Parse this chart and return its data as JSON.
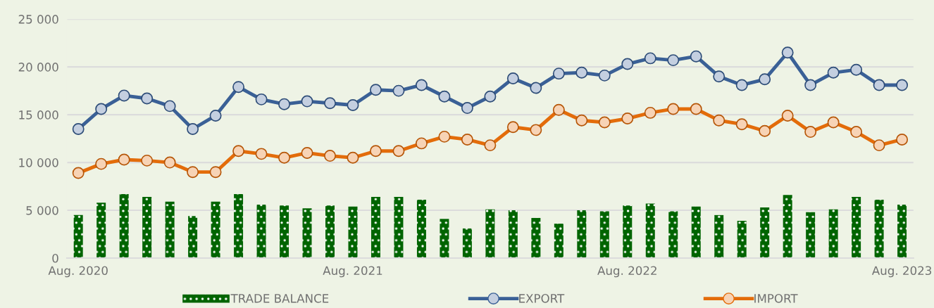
{
  "chart_data": {
    "type": "line",
    "categories": [
      "Aug. 2020",
      null,
      null,
      null,
      null,
      null,
      null,
      null,
      null,
      null,
      null,
      null,
      "Aug. 2021",
      null,
      null,
      null,
      null,
      null,
      null,
      null,
      null,
      null,
      null,
      null,
      "Aug. 2022",
      null,
      null,
      null,
      null,
      null,
      null,
      null,
      null,
      null,
      null,
      null,
      "Aug. 2023"
    ],
    "series": [
      {
        "name": "TRADE BALANCE",
        "type": "bar",
        "color": "#006400",
        "values": [
          4500,
          5800,
          6700,
          6400,
          5900,
          4400,
          5900,
          6700,
          5600,
          5500,
          5200,
          5500,
          5400,
          6400,
          6400,
          6100,
          4100,
          3100,
          5100,
          5000,
          4200,
          3600,
          5000,
          4900,
          5500,
          5700,
          4900,
          5400,
          4500,
          3900,
          5300,
          6600,
          4800,
          5100,
          6400,
          6100,
          5600
        ]
      },
      {
        "name": "EXPORT",
        "color": "#3a6096",
        "values": [
          13500,
          15600,
          17000,
          16700,
          15900,
          13500,
          14900,
          17900,
          16600,
          16100,
          16400,
          16200,
          16000,
          17600,
          17500,
          18100,
          16900,
          15700,
          16900,
          18800,
          17800,
          19300,
          19400,
          19100,
          20300,
          20900,
          20700,
          21100,
          19000,
          18100,
          18700,
          21500,
          18100,
          19400,
          19700,
          18100,
          18100
        ]
      },
      {
        "name": "IMPORT",
        "color": "#e36c0a",
        "values": [
          8900,
          9850,
          10300,
          10200,
          10000,
          9000,
          9000,
          11200,
          10900,
          10500,
          11000,
          10700,
          10500,
          11200,
          11200,
          12000,
          12700,
          12400,
          11800,
          13700,
          13400,
          15500,
          14400,
          14200,
          14600,
          15200,
          15600,
          15600,
          14400,
          14000,
          13300,
          14900,
          13200,
          14200,
          13200,
          11800,
          12400
        ]
      }
    ],
    "ylim": [
      0,
      25000
    ],
    "yticks": [
      0,
      {
        "value": 5000,
        "label": "5 000"
      },
      {
        "value": 10000,
        "label": "10 000"
      },
      {
        "value": 15000,
        "label": "15 000"
      },
      {
        "value": 20000,
        "label": "20 000"
      },
      {
        "value": 25000,
        "label": "25 000"
      }
    ],
    "grid": "y",
    "legend": "bottom",
    "marker": "circle",
    "line_style": "solid"
  }
}
